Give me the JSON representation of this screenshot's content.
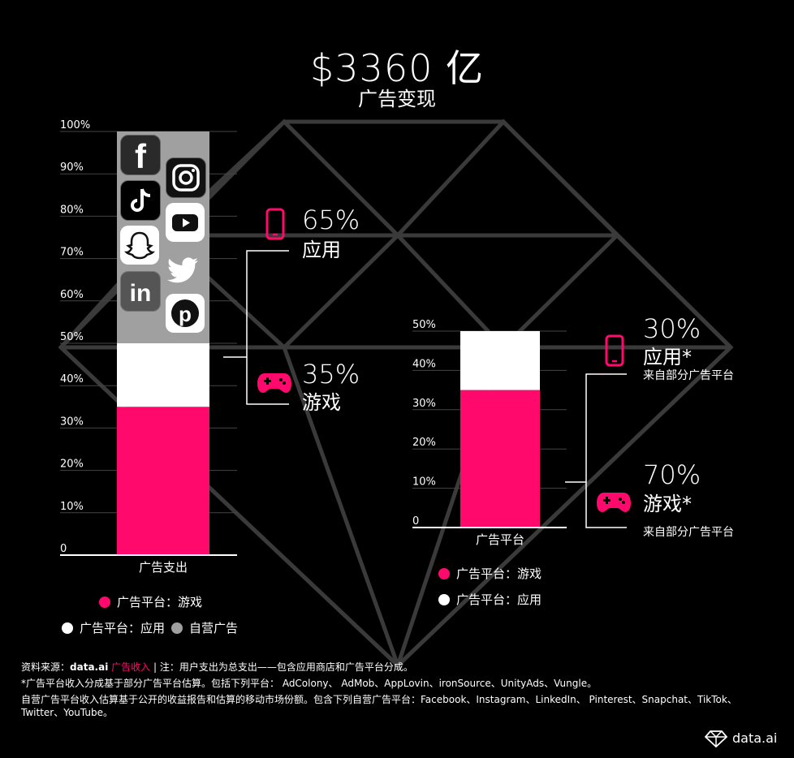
{
  "header": {
    "title": "$3360 亿",
    "subtitle": "广告变现"
  },
  "colors": {
    "game": "#ff0a6c",
    "app": "#ffffff",
    "owned": "#a0a0a0",
    "background": "#000000"
  },
  "chart_data": [
    {
      "type": "bar",
      "stacked": true,
      "categories": [
        "广告支出"
      ],
      "series": [
        {
          "name": "广告平台：游戏",
          "values": [
            35
          ]
        },
        {
          "name": "广告平台：应用",
          "values": [
            15
          ]
        },
        {
          "name": "自营广告",
          "values": [
            50
          ]
        }
      ],
      "yticks": [
        "0",
        "10%",
        "20%",
        "30%",
        "40%",
        "50%",
        "60%",
        "70%",
        "80%",
        "90%",
        "100%"
      ],
      "ylim": [
        0,
        100
      ],
      "annotations": [
        {
          "pct": "65%",
          "label": "应用",
          "icon": "smartphone-icon"
        },
        {
          "pct": "35%",
          "label": "游戏",
          "icon": "gamepad-icon"
        }
      ],
      "owned_icons": [
        "facebook-icon",
        "instagram-icon",
        "tiktok-icon",
        "youtube-icon",
        "snapchat-icon",
        "twitter-icon",
        "linkedin-icon",
        "pinterest-icon"
      ]
    },
    {
      "type": "bar",
      "stacked": true,
      "categories": [
        "广告平台"
      ],
      "series": [
        {
          "name": "广告平台：游戏",
          "values": [
            35
          ]
        },
        {
          "name": "广告平台：应用",
          "values": [
            15
          ]
        }
      ],
      "yticks": [
        "0",
        "10%",
        "20%",
        "30%",
        "40%",
        "50%"
      ],
      "ylim": [
        0,
        50
      ],
      "annotations": [
        {
          "pct": "30%",
          "label": "应用*",
          "note": "来自部分广告平台",
          "icon": "smartphone-icon"
        },
        {
          "pct": "70%",
          "label": "游戏*",
          "note": "来自部分广告平台",
          "icon": "gamepad-icon"
        }
      ]
    }
  ],
  "legend1": {
    "game": "广告平台：游戏",
    "app": "广告平台：应用",
    "owned": "自营广告"
  },
  "legend2": {
    "game": "广告平台：游戏",
    "app": "广告平台：应用"
  },
  "footer": {
    "line1_a": "资料来源：",
    "line1_b": "data.ai",
    "line1_c": "广告收入",
    "line1_d": " | 注：用户支出为总支出——包含应用商店和广告平台分成。",
    "line2": "*广告平台收入分成基于部分广告平台估算。包括下列平台： AdColony、 AdMob、AppLovin、ironSource、UnityAds、Vungle。",
    "line3": "自营广告平台收入估算基于公开的收益报告和估算的移动市场份额。包含下列自营广告平台：Facebook、Instagram、LinkedIn、 Pinterest、Snapchat、TikTok、",
    "line4": "Twitter、YouTube。"
  },
  "brand": {
    "name": "data.ai"
  }
}
